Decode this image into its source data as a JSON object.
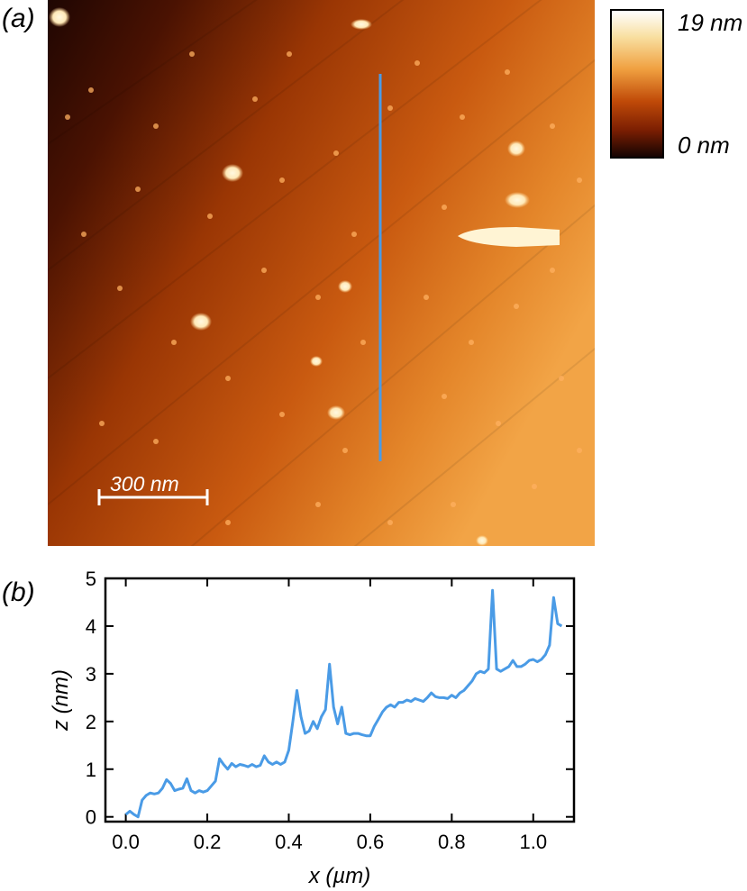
{
  "panel_a": {
    "label": "(a)",
    "colorbar": {
      "max_label": "19 nm",
      "min_label": "0 nm"
    },
    "scale_bar": {
      "label": "300 nm"
    },
    "colors": {
      "dark": "#2a0802",
      "mid": "#b8440a",
      "bright": "#f0a040",
      "particle": "#fff6dc",
      "line_cut": "#4a9be6"
    }
  },
  "panel_b": {
    "label": "(b)",
    "chart_data": {
      "type": "line",
      "xlabel": "x (µm)",
      "ylabel": "z (nm)",
      "xlim": [
        -0.05,
        1.1
      ],
      "ylim": [
        -0.1,
        5
      ],
      "xticks": [
        "0.0",
        "0.2",
        "0.4",
        "0.6",
        "0.8",
        "1.0"
      ],
      "yticks": [
        "0",
        "1",
        "2",
        "3",
        "4",
        "5"
      ],
      "series": [
        {
          "color": "#4a9be6",
          "x": [
            0.0,
            0.01,
            0.02,
            0.03,
            0.04,
            0.05,
            0.06,
            0.07,
            0.08,
            0.09,
            0.1,
            0.11,
            0.12,
            0.13,
            0.14,
            0.15,
            0.16,
            0.17,
            0.18,
            0.19,
            0.2,
            0.21,
            0.22,
            0.23,
            0.24,
            0.25,
            0.26,
            0.27,
            0.28,
            0.29,
            0.3,
            0.31,
            0.32,
            0.33,
            0.34,
            0.35,
            0.36,
            0.37,
            0.38,
            0.39,
            0.4,
            0.41,
            0.42,
            0.43,
            0.44,
            0.45,
            0.46,
            0.47,
            0.48,
            0.49,
            0.5,
            0.51,
            0.52,
            0.53,
            0.54,
            0.55,
            0.56,
            0.57,
            0.58,
            0.59,
            0.6,
            0.61,
            0.62,
            0.63,
            0.64,
            0.65,
            0.66,
            0.67,
            0.68,
            0.69,
            0.7,
            0.71,
            0.72,
            0.73,
            0.74,
            0.75,
            0.76,
            0.77,
            0.78,
            0.79,
            0.8,
            0.81,
            0.82,
            0.83,
            0.84,
            0.85,
            0.86,
            0.87,
            0.88,
            0.89,
            0.9,
            0.91,
            0.92,
            0.93,
            0.94,
            0.95,
            0.96,
            0.97,
            0.98,
            0.99,
            1.0,
            1.01,
            1.02,
            1.03,
            1.04,
            1.05,
            1.06,
            1.07
          ],
          "y": [
            0.05,
            0.12,
            0.05,
            0.0,
            0.35,
            0.45,
            0.5,
            0.48,
            0.5,
            0.6,
            0.78,
            0.7,
            0.55,
            0.58,
            0.6,
            0.8,
            0.55,
            0.5,
            0.55,
            0.52,
            0.55,
            0.65,
            0.75,
            1.22,
            1.1,
            1.0,
            1.12,
            1.05,
            1.1,
            1.08,
            1.05,
            1.1,
            1.05,
            1.08,
            1.28,
            1.15,
            1.1,
            1.15,
            1.1,
            1.15,
            1.4,
            2.0,
            2.65,
            2.1,
            1.75,
            1.8,
            2.0,
            1.85,
            2.1,
            2.25,
            3.2,
            2.3,
            1.95,
            2.3,
            1.75,
            1.72,
            1.75,
            1.75,
            1.72,
            1.7,
            1.7,
            1.9,
            2.05,
            2.2,
            2.3,
            2.35,
            2.3,
            2.4,
            2.4,
            2.45,
            2.42,
            2.48,
            2.45,
            2.42,
            2.5,
            2.6,
            2.52,
            2.5,
            2.5,
            2.48,
            2.55,
            2.5,
            2.6,
            2.65,
            2.75,
            2.85,
            3.0,
            3.05,
            3.02,
            3.1,
            4.75,
            3.1,
            3.05,
            3.1,
            3.15,
            3.28,
            3.15,
            3.15,
            3.2,
            3.28,
            3.3,
            3.25,
            3.3,
            3.4,
            3.6,
            4.6,
            4.05,
            4.0
          ]
        }
      ]
    }
  }
}
